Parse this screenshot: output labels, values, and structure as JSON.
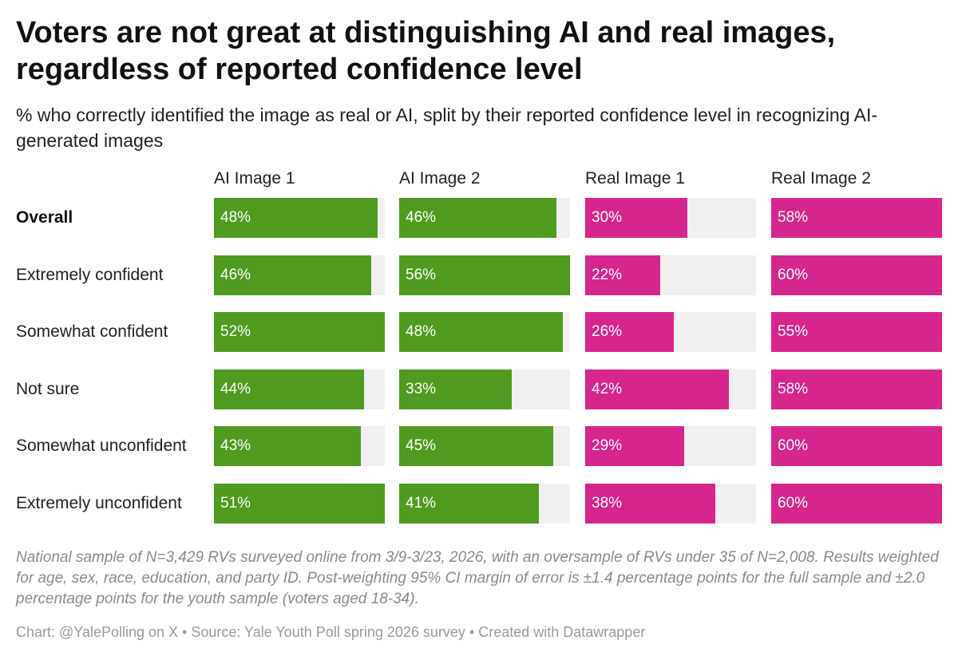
{
  "title": "Voters are not great at distinguishing AI and real images, regardless of reported confidence level",
  "subtitle": "% who correctly identified the image as real or AI, split by their reported confidence level in recognizing AI-generated images",
  "footnote": "National sample of N=3,429 RVs surveyed online from 3/9-3/23, 2026, with an oversample of RVs under 35 of N=2,008. Results weighted for age, sex, race, education, and party ID. Post-weighting 95% CI margin of error is ±1.4 percentage points for the full sample and ±2.0 percentage points for the youth sample (voters aged 18-34).",
  "credit": "Chart: @YalePolling on X • Source: Yale Youth Poll spring 2026 survey • Created with Datawrapper",
  "colors": {
    "ai": "#4f9a1f",
    "real": "#d6268e",
    "track": "#f0f0f0"
  },
  "chart_data": {
    "type": "bar",
    "orientation": "horizontal",
    "layout": "small-multiples",
    "categories": [
      "Overall",
      "Extremely confident",
      "Somewhat confident",
      "Not sure",
      "Somewhat unconfident",
      "Extremely unconfident"
    ],
    "xlim": [
      0,
      100
    ],
    "unit": "%",
    "series": [
      {
        "name": "AI Image 1",
        "color": "#4f9a1f",
        "values": [
          48,
          46,
          52,
          44,
          43,
          51
        ]
      },
      {
        "name": "AI Image 2",
        "color": "#4f9a1f",
        "values": [
          46,
          56,
          48,
          33,
          45,
          41
        ]
      },
      {
        "name": "Real Image 1",
        "color": "#d6268e",
        "values": [
          30,
          22,
          26,
          42,
          29,
          38
        ]
      },
      {
        "name": "Real Image 2",
        "color": "#d6268e",
        "values": [
          58,
          60,
          55,
          58,
          60,
          60
        ]
      }
    ]
  }
}
